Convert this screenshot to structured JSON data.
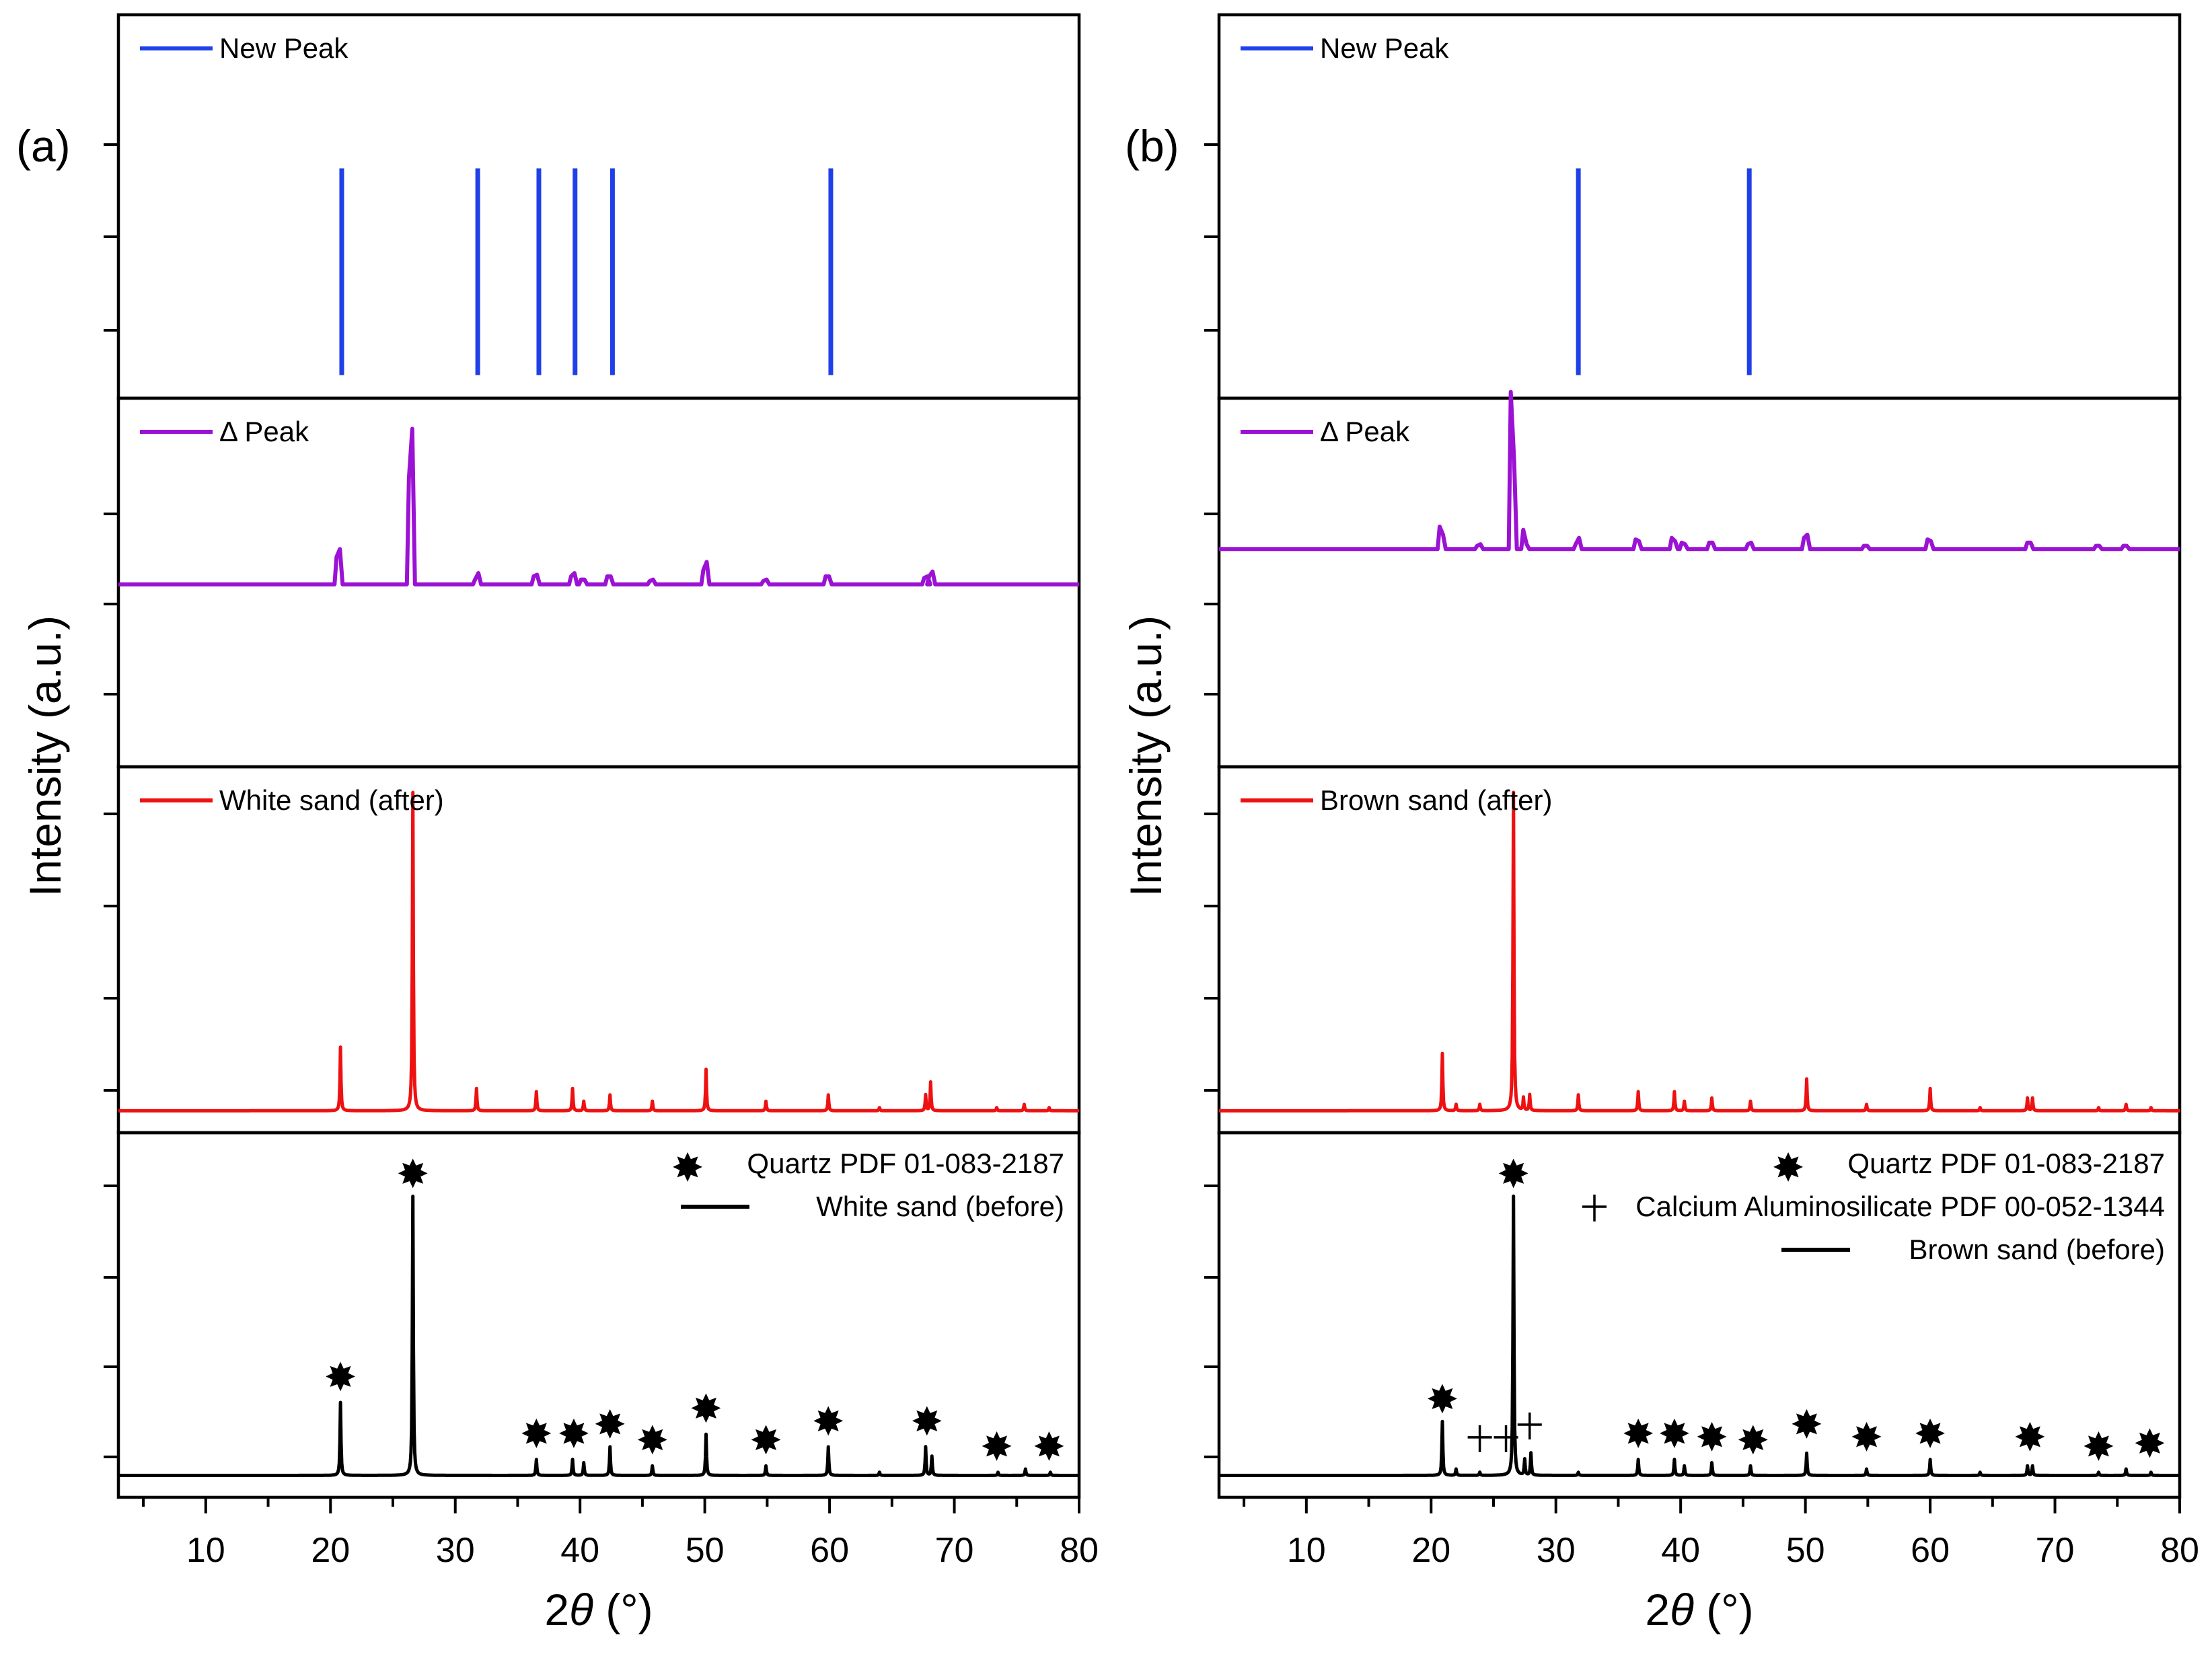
{
  "chart_data": [
    {
      "type": "stacked-line",
      "panel_label": "(a)",
      "xlabel": "2θ (°)",
      "ylabel": "Intensity (a.u.)",
      "xlim": [
        3,
        80
      ],
      "xticks": [
        10,
        20,
        30,
        40,
        50,
        60,
        70,
        80
      ],
      "subplots": [
        {
          "kind": "sticks",
          "legend": "New Peak",
          "color": "#1f3fe8",
          "ylim": [
            0,
            1
          ],
          "peaks": [
            {
              "x": 20.9,
              "y": 0.62
            },
            {
              "x": 31.8,
              "y": 0.62
            },
            {
              "x": 36.7,
              "y": 0.62
            },
            {
              "x": 39.6,
              "y": 0.62
            },
            {
              "x": 42.6,
              "y": 0.62
            },
            {
              "x": 60.1,
              "y": 0.62
            }
          ]
        },
        {
          "kind": "difference",
          "legend": "Δ Peak",
          "color": "#9b12d4",
          "ylim": [
            -1,
            1
          ],
          "baseline": 0,
          "features": [
            {
              "x": 20.7,
              "up": 0.22,
              "down": -0.17
            },
            {
              "x": 26.5,
              "up": 0.97,
              "down": -0.66
            },
            {
              "x": 31.8,
              "up": 0.07,
              "down": -0.03
            },
            {
              "x": 36.5,
              "up": 0.06,
              "down": -0.05
            },
            {
              "x": 39.5,
              "up": 0.07,
              "down": -0.05
            },
            {
              "x": 40.3,
              "up": 0.03,
              "down": -0.03
            },
            {
              "x": 42.4,
              "up": 0.05,
              "down": -0.05
            },
            {
              "x": 45.8,
              "up": 0.03,
              "down": -0.02
            },
            {
              "x": 50.1,
              "up": 0.14,
              "down": -0.09
            },
            {
              "x": 54.9,
              "up": 0.03,
              "down": -0.02
            },
            {
              "x": 59.9,
              "up": 0.05,
              "down": -0.05
            },
            {
              "x": 67.8,
              "up": 0.05,
              "down": -0.04
            },
            {
              "x": 68.2,
              "up": 0.08,
              "down": -0.05
            }
          ]
        },
        {
          "kind": "pattern",
          "legend": "White sand  (after)",
          "color": "#ee1111",
          "ylim": [
            0,
            1
          ],
          "baseline": 0.0,
          "peaks": [
            {
              "x": 20.8,
              "y": 0.2
            },
            {
              "x": 26.6,
              "y": 1.0
            },
            {
              "x": 31.7,
              "y": 0.07
            },
            {
              "x": 36.5,
              "y": 0.06
            },
            {
              "x": 39.4,
              "y": 0.07
            },
            {
              "x": 40.3,
              "y": 0.03
            },
            {
              "x": 42.4,
              "y": 0.05
            },
            {
              "x": 45.8,
              "y": 0.03
            },
            {
              "x": 50.1,
              "y": 0.13
            },
            {
              "x": 54.9,
              "y": 0.03
            },
            {
              "x": 59.9,
              "y": 0.05
            },
            {
              "x": 64.0,
              "y": 0.01
            },
            {
              "x": 67.7,
              "y": 0.05
            },
            {
              "x": 68.1,
              "y": 0.09
            },
            {
              "x": 73.4,
              "y": 0.01
            },
            {
              "x": 75.6,
              "y": 0.02
            },
            {
              "x": 77.6,
              "y": 0.01
            }
          ]
        },
        {
          "kind": "pattern",
          "legend": "White sand  (before)",
          "color": "#000000",
          "ylim": [
            0,
            1
          ],
          "baseline": 0.0,
          "reference_legend": "Quartz PDF 01-083-2187",
          "peaks": [
            {
              "x": 20.8,
              "y": 0.23
            },
            {
              "x": 26.6,
              "y": 0.88
            },
            {
              "x": 36.5,
              "y": 0.05
            },
            {
              "x": 39.4,
              "y": 0.05
            },
            {
              "x": 40.3,
              "y": 0.04
            },
            {
              "x": 42.4,
              "y": 0.09
            },
            {
              "x": 45.8,
              "y": 0.03
            },
            {
              "x": 50.1,
              "y": 0.13
            },
            {
              "x": 54.9,
              "y": 0.03
            },
            {
              "x": 59.9,
              "y": 0.09
            },
            {
              "x": 64.0,
              "y": 0.01
            },
            {
              "x": 67.7,
              "y": 0.09
            },
            {
              "x": 68.2,
              "y": 0.06
            },
            {
              "x": 73.5,
              "y": 0.01
            },
            {
              "x": 75.7,
              "y": 0.02
            },
            {
              "x": 77.7,
              "y": 0.01
            }
          ],
          "quartz_markers": [
            20.8,
            26.6,
            36.5,
            39.5,
            42.4,
            45.8,
            50.1,
            54.9,
            59.9,
            67.8,
            73.4,
            77.6
          ],
          "quartz_marker_y": [
            0.31,
            0.95,
            0.13,
            0.13,
            0.16,
            0.11,
            0.21,
            0.11,
            0.17,
            0.17,
            0.09,
            0.09
          ],
          "calcium_markers": []
        }
      ]
    },
    {
      "type": "stacked-line",
      "panel_label": "(b)",
      "xlabel": "2θ (°)",
      "ylabel": "Intensity (a.u.)",
      "xlim": [
        3,
        80
      ],
      "xticks": [
        10,
        20,
        30,
        40,
        50,
        60,
        70,
        80
      ],
      "subplots": [
        {
          "kind": "sticks",
          "legend": "New Peak",
          "color": "#1f3fe8",
          "ylim": [
            0,
            1
          ],
          "peaks": [
            {
              "x": 31.8,
              "y": 0.62
            },
            {
              "x": 45.5,
              "y": 0.62
            }
          ]
        },
        {
          "kind": "difference",
          "legend": "Δ Peak",
          "color": "#9b12d4",
          "ylim": [
            -1,
            1
          ],
          "baseline": 0.22,
          "features": [
            {
              "x": 20.9,
              "up": 0.09,
              "down": -0.14
            },
            {
              "x": 23.9,
              "up": 0.03,
              "down": -0.02
            },
            {
              "x": 26.6,
              "up": 0.55,
              "down": -0.98
            },
            {
              "x": 27.6,
              "up": 0.03,
              "down": -0.12
            },
            {
              "x": 31.8,
              "up": 0.07,
              "down": -0.03
            },
            {
              "x": 36.6,
              "up": 0.05,
              "down": -0.06
            },
            {
              "x": 39.5,
              "up": 0.05,
              "down": -0.07
            },
            {
              "x": 40.3,
              "up": 0.03,
              "down": -0.04
            },
            {
              "x": 42.5,
              "up": 0.04,
              "down": -0.04
            },
            {
              "x": 45.6,
              "up": 0.04,
              "down": -0.03
            },
            {
              "x": 50.1,
              "up": 0.09,
              "down": -0.07
            },
            {
              "x": 54.9,
              "up": 0.02,
              "down": -0.02
            },
            {
              "x": 60.0,
              "up": 0.05,
              "down": -0.06
            },
            {
              "x": 68.0,
              "up": 0.04,
              "down": -0.04
            },
            {
              "x": 73.5,
              "up": 0.02,
              "down": -0.02
            },
            {
              "x": 75.7,
              "up": 0.02,
              "down": -0.02
            }
          ]
        },
        {
          "kind": "pattern",
          "legend": "Brown sand  (after)",
          "color": "#ee1111",
          "ylim": [
            0,
            1
          ],
          "baseline": 0.0,
          "peaks": [
            {
              "x": 20.9,
              "y": 0.18
            },
            {
              "x": 22.0,
              "y": 0.02
            },
            {
              "x": 23.9,
              "y": 0.02
            },
            {
              "x": 26.6,
              "y": 1.0
            },
            {
              "x": 27.4,
              "y": 0.04
            },
            {
              "x": 27.9,
              "y": 0.05
            },
            {
              "x": 31.8,
              "y": 0.05
            },
            {
              "x": 36.6,
              "y": 0.06
            },
            {
              "x": 39.5,
              "y": 0.06
            },
            {
              "x": 40.3,
              "y": 0.03
            },
            {
              "x": 42.5,
              "y": 0.04
            },
            {
              "x": 45.6,
              "y": 0.03
            },
            {
              "x": 50.1,
              "y": 0.1
            },
            {
              "x": 54.9,
              "y": 0.02
            },
            {
              "x": 60.0,
              "y": 0.07
            },
            {
              "x": 64.0,
              "y": 0.01
            },
            {
              "x": 67.8,
              "y": 0.04
            },
            {
              "x": 68.2,
              "y": 0.04
            },
            {
              "x": 73.5,
              "y": 0.01
            },
            {
              "x": 75.7,
              "y": 0.02
            },
            {
              "x": 77.7,
              "y": 0.01
            }
          ]
        },
        {
          "kind": "pattern",
          "legend": "Brown sand  (before)",
          "color": "#000000",
          "ylim": [
            0,
            1
          ],
          "baseline": 0.0,
          "reference_legend": "Quartz PDF 01-083-2187",
          "reference_legend_2": "Calcium Aluminosilicate PDF 00-052-1344",
          "peaks": [
            {
              "x": 20.9,
              "y": 0.17
            },
            {
              "x": 22.0,
              "y": 0.02
            },
            {
              "x": 23.9,
              "y": 0.01
            },
            {
              "x": 26.6,
              "y": 0.88
            },
            {
              "x": 27.5,
              "y": 0.05
            },
            {
              "x": 28.0,
              "y": 0.07
            },
            {
              "x": 31.8,
              "y": 0.01
            },
            {
              "x": 36.6,
              "y": 0.05
            },
            {
              "x": 39.5,
              "y": 0.05
            },
            {
              "x": 40.3,
              "y": 0.03
            },
            {
              "x": 42.5,
              "y": 0.04
            },
            {
              "x": 45.6,
              "y": 0.03
            },
            {
              "x": 50.1,
              "y": 0.07
            },
            {
              "x": 54.9,
              "y": 0.02
            },
            {
              "x": 60.0,
              "y": 0.05
            },
            {
              "x": 64.0,
              "y": 0.01
            },
            {
              "x": 67.8,
              "y": 0.03
            },
            {
              "x": 68.2,
              "y": 0.03
            },
            {
              "x": 73.5,
              "y": 0.01
            },
            {
              "x": 75.7,
              "y": 0.02
            },
            {
              "x": 77.7,
              "y": 0.01
            }
          ],
          "quartz_markers": [
            20.9,
            26.6,
            36.6,
            39.5,
            42.5,
            45.8,
            50.1,
            54.9,
            60.0,
            68.0,
            73.5,
            77.6
          ],
          "quartz_marker_y": [
            0.24,
            0.95,
            0.13,
            0.13,
            0.12,
            0.11,
            0.16,
            0.12,
            0.13,
            0.12,
            0.09,
            0.1
          ],
          "calcium_markers": [
            23.9,
            26.0,
            27.9
          ],
          "calcium_marker_y": [
            0.12,
            0.12,
            0.16
          ]
        }
      ]
    }
  ]
}
